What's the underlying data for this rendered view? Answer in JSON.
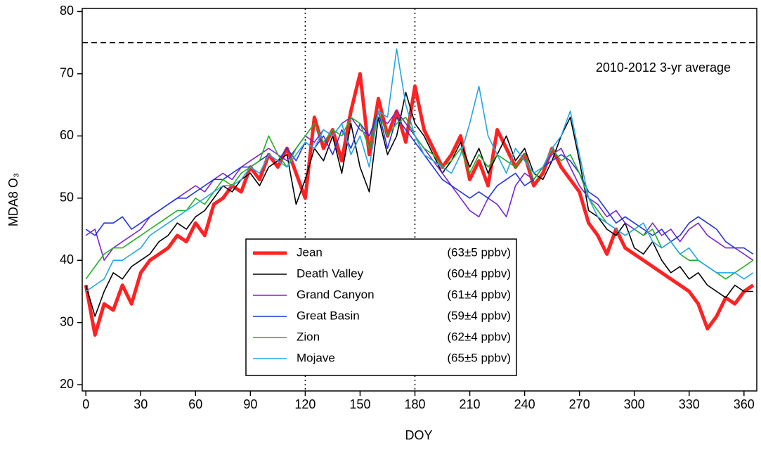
{
  "chart_data": {
    "type": "line",
    "xlabel": "DOY",
    "ylabel": "MDA8 O₃",
    "annotation": "2010-2012 3-yr average",
    "x": [
      0,
      5,
      10,
      15,
      20,
      25,
      30,
      35,
      40,
      45,
      50,
      55,
      60,
      65,
      70,
      75,
      80,
      85,
      90,
      95,
      100,
      105,
      110,
      115,
      120,
      125,
      130,
      135,
      140,
      145,
      150,
      155,
      160,
      165,
      170,
      175,
      180,
      185,
      190,
      195,
      200,
      205,
      210,
      215,
      220,
      225,
      230,
      235,
      240,
      245,
      250,
      255,
      260,
      265,
      270,
      275,
      280,
      285,
      290,
      295,
      300,
      305,
      310,
      315,
      320,
      325,
      330,
      335,
      340,
      345,
      350,
      355,
      360,
      365
    ],
    "series": [
      {
        "name": "Jean",
        "summary": "(63±5 ppbv)",
        "color": "#ff2222",
        "linewidth": 5,
        "values": [
          36,
          28,
          33,
          32,
          36,
          33,
          38,
          40,
          41,
          42,
          44,
          43,
          46,
          44,
          49,
          50,
          52,
          51,
          55,
          53,
          57,
          55,
          58,
          54,
          50,
          63,
          58,
          61,
          56,
          64,
          70,
          57,
          66,
          60,
          64,
          59,
          68,
          61,
          58,
          55,
          57,
          60,
          53,
          56,
          52,
          61,
          58,
          55,
          57,
          52,
          54,
          58,
          55,
          53,
          51,
          46,
          44,
          41,
          45,
          42,
          41,
          40,
          39,
          38,
          37,
          36,
          35,
          33,
          29,
          31,
          34,
          33,
          35,
          36
        ]
      },
      {
        "name": "Death Valley",
        "summary": "(60±4 ppbv)",
        "color": "#000000",
        "linewidth": 1.6,
        "values": [
          36,
          31,
          35,
          38,
          37,
          39,
          40,
          41,
          43,
          44,
          46,
          45,
          47,
          48,
          50,
          52,
          51,
          53,
          54,
          52,
          55,
          56,
          57,
          49,
          53,
          58,
          56,
          60,
          54,
          62,
          55,
          51,
          63,
          57,
          60,
          67,
          62,
          60,
          57,
          54,
          56,
          59,
          55,
          58,
          54,
          57,
          60,
          56,
          58,
          54,
          53,
          56,
          60,
          63,
          56,
          48,
          47,
          45,
          44,
          46,
          42,
          41,
          43,
          40,
          38,
          39,
          37,
          38,
          36,
          35,
          34,
          36,
          35,
          35
        ]
      },
      {
        "name": "Grand Canyon",
        "summary": "(61±4 ppbv)",
        "color": "#7a22d6",
        "linewidth": 1.6,
        "values": [
          44,
          45,
          40,
          42,
          43,
          44,
          45,
          47,
          48,
          49,
          50,
          51,
          52,
          51,
          53,
          54,
          53,
          55,
          56,
          57,
          58,
          57,
          56,
          58,
          60,
          59,
          61,
          60,
          62,
          63,
          61,
          60,
          63,
          62,
          64,
          62,
          60,
          58,
          56,
          54,
          52,
          50,
          48,
          47,
          50,
          49,
          47,
          52,
          54,
          53,
          55,
          57,
          58,
          55,
          52,
          50,
          49,
          47,
          48,
          46,
          45,
          44,
          46,
          44,
          45,
          43,
          45,
          46,
          44,
          43,
          42,
          42,
          41,
          40
        ]
      },
      {
        "name": "Great Basin",
        "summary": "(59±4 ppbv)",
        "color": "#2233e0",
        "linewidth": 1.6,
        "values": [
          45,
          44,
          46,
          46,
          47,
          45,
          46,
          47,
          48,
          49,
          50,
          50,
          51,
          52,
          53,
          53,
          54,
          55,
          55,
          56,
          57,
          56,
          58,
          56,
          59,
          58,
          60,
          57,
          61,
          58,
          62,
          60,
          64,
          58,
          63,
          61,
          59,
          57,
          55,
          53,
          52,
          51,
          50,
          51,
          50,
          52,
          53,
          54,
          52,
          53,
          55,
          56,
          57,
          56,
          54,
          51,
          50,
          48,
          46,
          47,
          46,
          45,
          44,
          45,
          43,
          44,
          46,
          47,
          46,
          45,
          43,
          42,
          42,
          41
        ]
      },
      {
        "name": "Zion",
        "summary": "(62±4 ppbv)",
        "color": "#22b022",
        "linewidth": 1.6,
        "values": [
          37,
          39,
          41,
          42,
          42,
          43,
          44,
          45,
          46,
          47,
          48,
          48,
          50,
          49,
          51,
          53,
          52,
          54,
          55,
          56,
          60,
          57,
          55,
          58,
          60,
          62,
          59,
          61,
          60,
          63,
          62,
          58,
          64,
          60,
          62,
          63,
          60,
          58,
          57,
          55,
          56,
          58,
          54,
          57,
          55,
          57,
          56,
          55,
          57,
          53,
          55,
          58,
          56,
          57,
          54,
          50,
          48,
          46,
          45,
          44,
          45,
          44,
          45,
          42,
          43,
          41,
          40,
          40,
          39,
          38,
          37,
          38,
          39,
          40
        ]
      },
      {
        "name": "Mojave",
        "summary": "(65±5 ppbv)",
        "color": "#22a6e6",
        "linewidth": 1.6,
        "values": [
          35,
          36,
          37,
          40,
          40,
          41,
          42,
          44,
          45,
          46,
          47,
          48,
          49,
          50,
          51,
          52,
          52,
          53,
          55,
          54,
          57,
          56,
          55,
          57,
          59,
          58,
          61,
          60,
          62,
          57,
          60,
          55,
          64,
          63,
          74,
          65,
          60,
          57,
          56,
          55,
          54,
          57,
          62,
          68,
          60,
          57,
          54,
          58,
          56,
          54,
          55,
          58,
          60,
          64,
          57,
          50,
          47,
          46,
          45,
          44,
          45,
          46,
          43,
          42,
          43,
          41,
          42,
          40,
          39,
          38,
          38,
          38,
          37,
          38
        ]
      }
    ],
    "hlines": [
      75
    ],
    "vlines": [
      120,
      180
    ],
    "xlim": [
      -2,
      367
    ],
    "ylim": [
      19,
      80.5
    ],
    "xticks": [
      0,
      30,
      60,
      90,
      120,
      150,
      180,
      210,
      240,
      270,
      300,
      330,
      360
    ],
    "yticks": [
      20,
      30,
      40,
      50,
      60,
      70,
      80
    ],
    "legend": "lower center"
  }
}
